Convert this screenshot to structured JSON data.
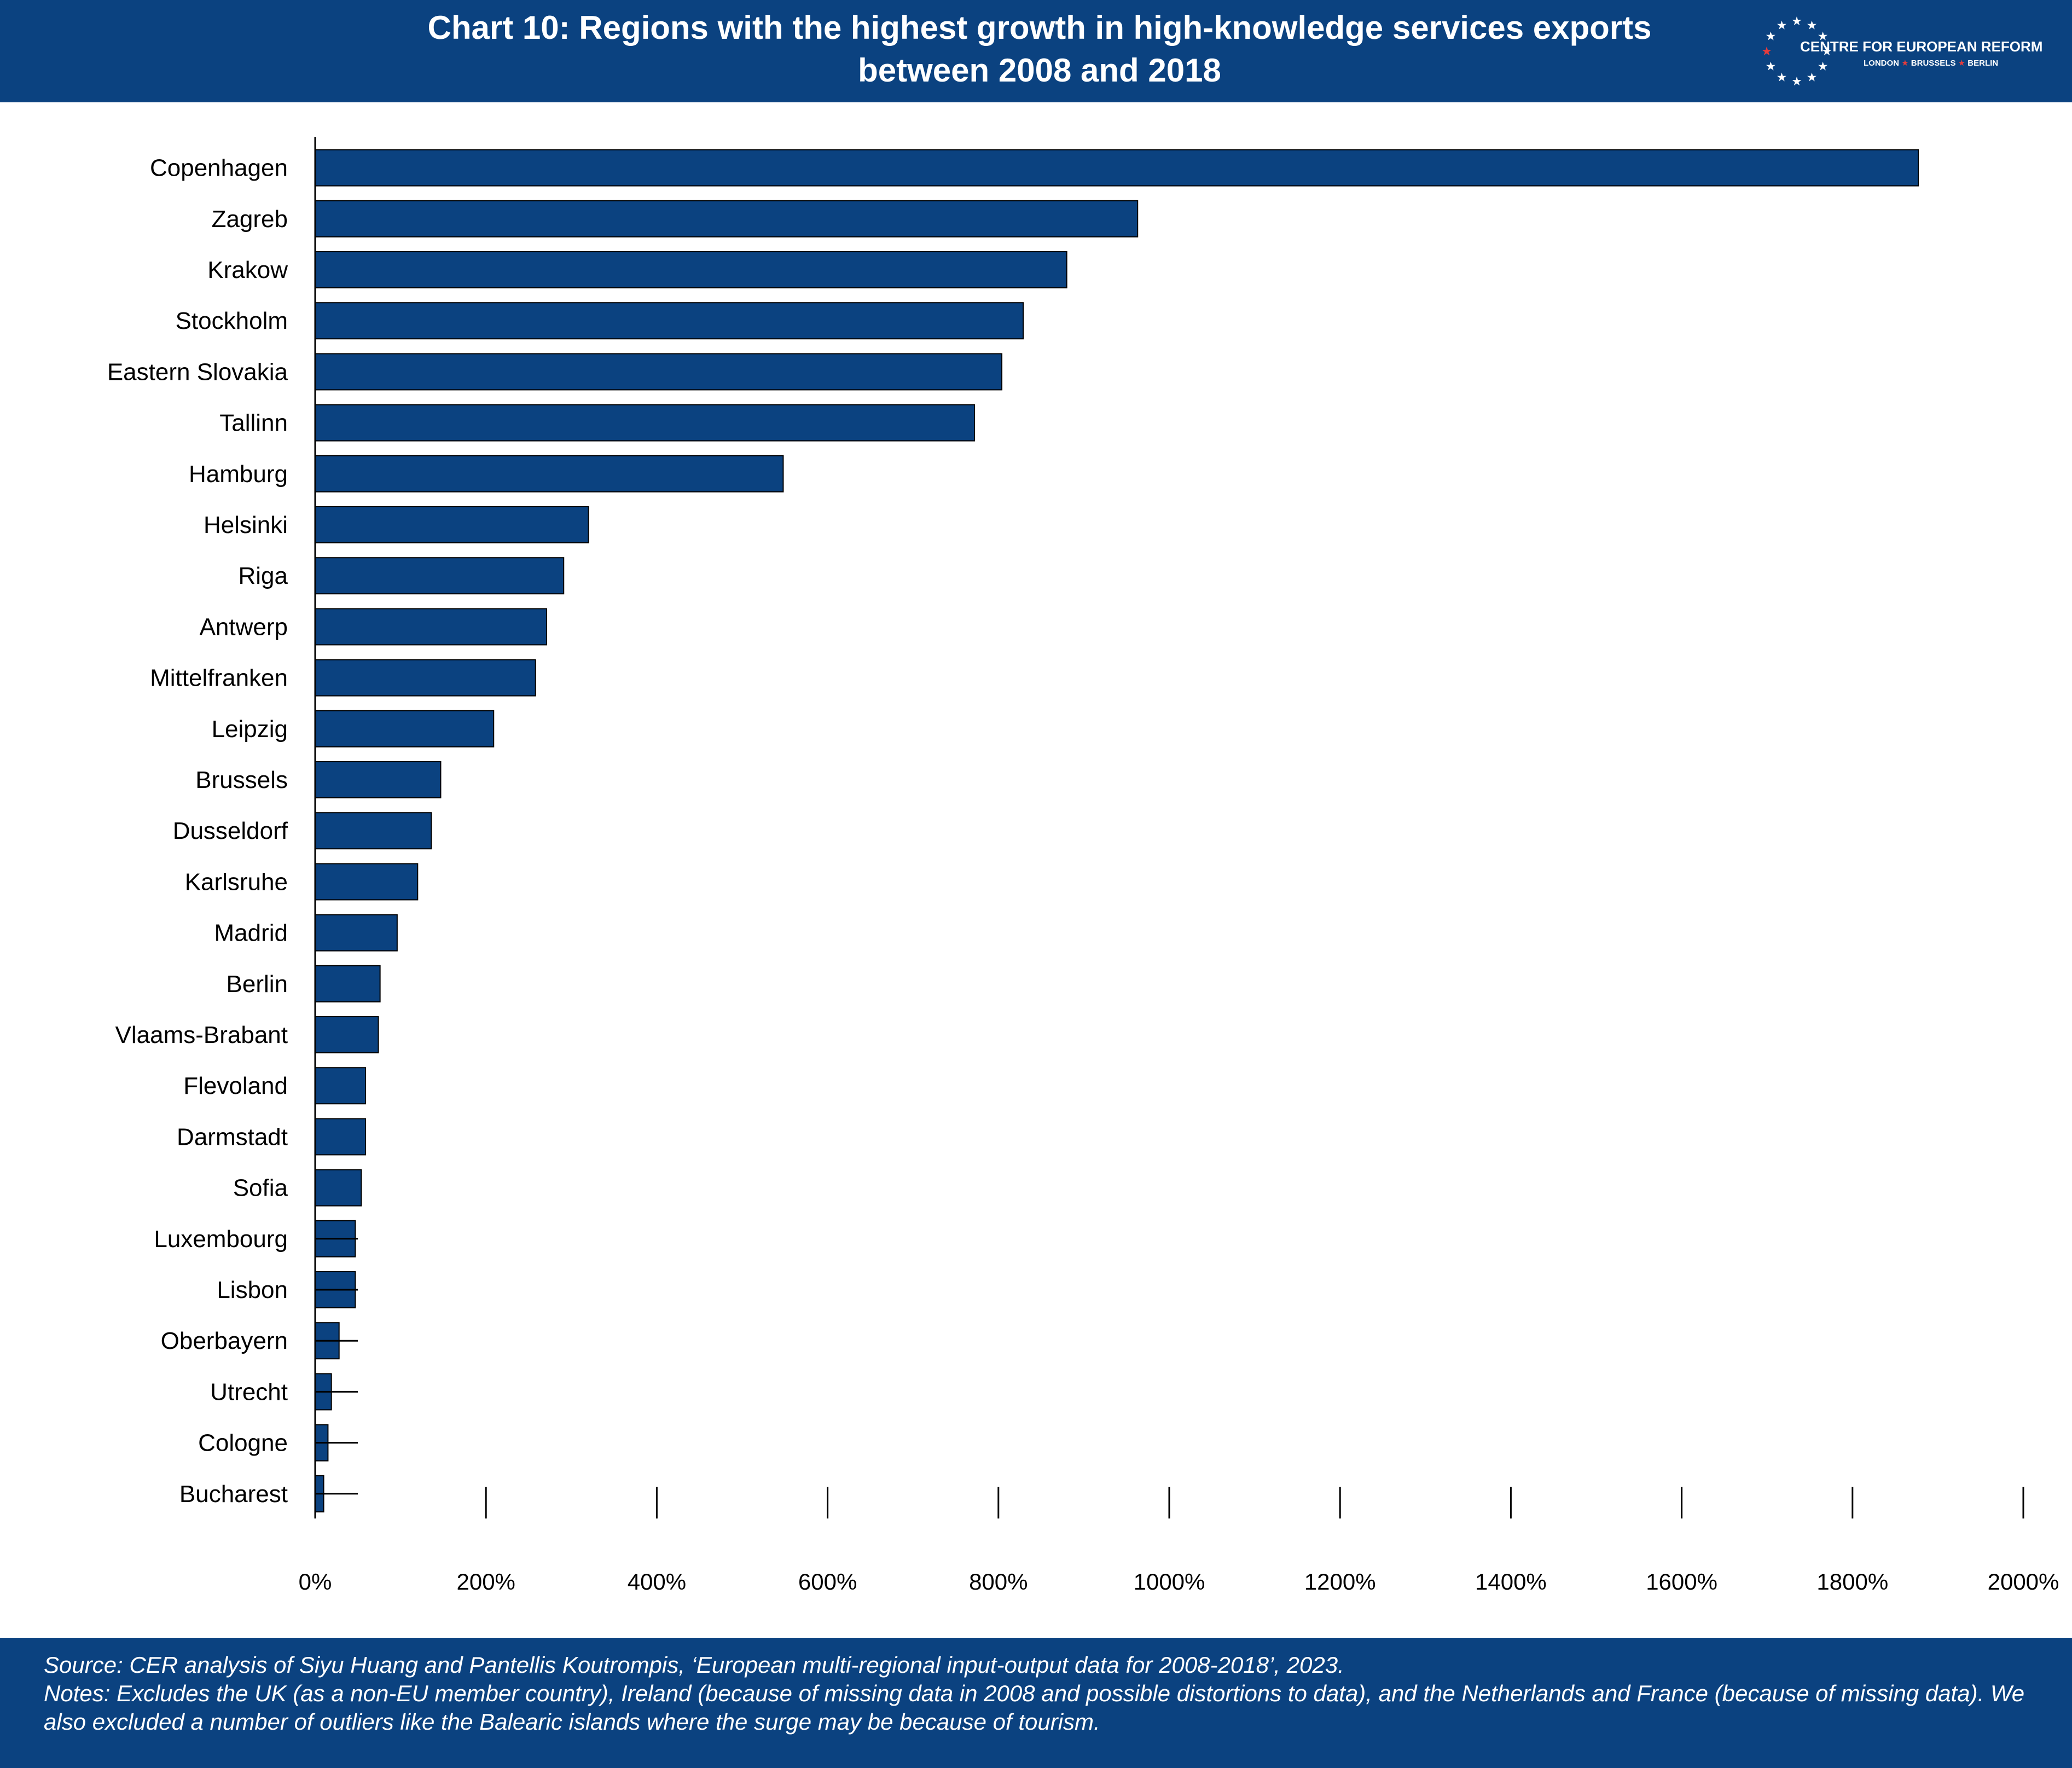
{
  "header": {
    "title_line1": "Chart 10: Regions with the highest growth in high-knowledge services exports",
    "title_line2": "between 2008 and 2018"
  },
  "logo": {
    "name": "CENTRE FOR EUROPEAN REFORM",
    "city1": "LONDON",
    "city2": "BRUSSELS",
    "city3": "BERLIN",
    "star_color": "#ffffff",
    "accent_color": "#e63c3c"
  },
  "chart_data": {
    "type": "bar",
    "orientation": "horizontal",
    "categories": [
      "Copenhagen",
      "Zagreb",
      "Krakow",
      "Stockholm",
      "Eastern Slovakia",
      "Tallinn",
      "Hamburg",
      "Helsinki",
      "Riga",
      "Antwerp",
      "Mittelfranken",
      "Leipzig",
      "Brussels",
      "Dusseldorf",
      "Karlsruhe",
      "Madrid",
      "Berlin",
      "Vlaams-Brabant",
      "Flevoland",
      "Darmstadt",
      "Sofia",
      "Luxembourg",
      "Lisbon",
      "Oberbayern",
      "Utrecht",
      "Cologne",
      "Bucharest"
    ],
    "values": [
      1877,
      963,
      880,
      829,
      804,
      772,
      548,
      320,
      291,
      271,
      258,
      209,
      147,
      136,
      120,
      96,
      76,
      74,
      59,
      59,
      54,
      47,
      47,
      28,
      19,
      15,
      10
    ],
    "value_format": "percent",
    "xlim": [
      0,
      2000
    ],
    "xticks": [
      "0%",
      "200%",
      "400%",
      "600%",
      "800%",
      "1000%",
      "1200%",
      "1400%",
      "1600%",
      "1800%",
      "2000%"
    ],
    "bar_color": "#0b4280",
    "grid": false
  },
  "footer": {
    "source": "Source: CER analysis of Siyu Huang and Pantellis Koutrompis, ‘European multi-regional input-output data for 2008-2018’, 2023.",
    "notes": "Notes: Excludes the UK (as a non-EU member country), Ireland (because of missing data in 2008 and possible distortions to data), and the Netherlands and France (because of missing data). We also excluded a number of outliers like the Balearic islands where the surge may be because of tourism."
  }
}
